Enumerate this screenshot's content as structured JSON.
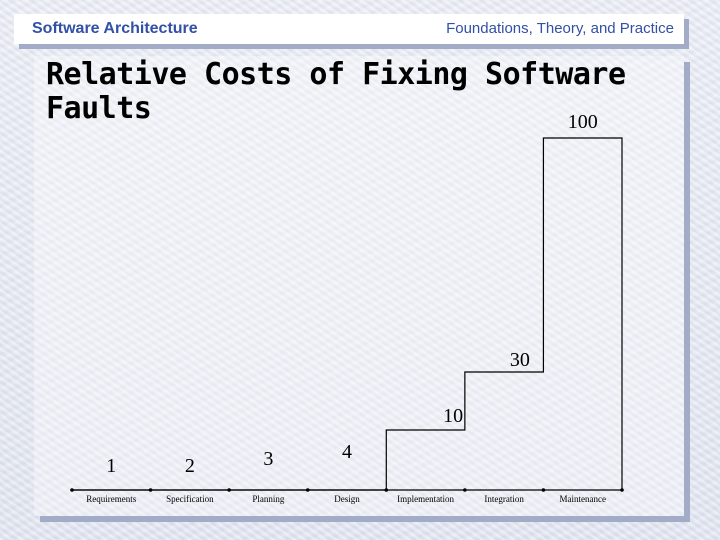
{
  "header": {
    "left": "Software Architecture",
    "right": "Foundations, Theory, and Practice"
  },
  "title": "Relative Costs of Fixing Software Faults",
  "chart_data": {
    "type": "line",
    "style": "step",
    "categories": [
      "Requirements",
      "Specification",
      "Planning",
      "Design",
      "Implementation",
      "Integration",
      "Maintenance"
    ],
    "values": [
      1,
      2,
      3,
      4,
      10,
      30,
      100
    ],
    "value_labels": [
      "1",
      "2",
      "3",
      "4",
      "10",
      "30",
      "100"
    ],
    "xlabel": "",
    "ylabel": "",
    "grid": false,
    "legend": "none",
    "line_color": "#000000"
  },
  "colors": {
    "header_text": "#3250a6",
    "panel_shadow": "#a3acc6"
  }
}
